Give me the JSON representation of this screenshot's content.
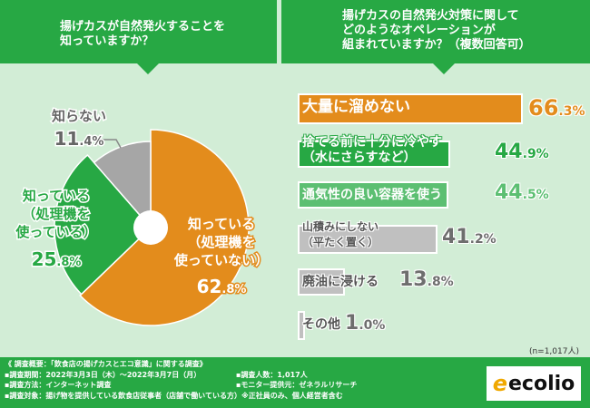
{
  "left_header": {
    "line1": "揚げカスが自然発火することを",
    "line2": "知っていますか？"
  },
  "right_header": {
    "line1": "揚げカスの自然発火対策に関して",
    "line2": "どのようなオペレーションが",
    "line3": "組まれていますか？（複数回答可）"
  },
  "chart_data": [
    {
      "type": "pie",
      "title": "揚げカスが自然発火することを知っていますか？",
      "slices": [
        {
          "label_lines": [
            "知っている",
            "（処理機を",
            "使っていない）"
          ],
          "value": 62.8,
          "value_int": "62",
          "value_dec": ".8%",
          "color": "#e38c1c"
        },
        {
          "label_lines": [
            "知っている",
            "（処理機を",
            "使っている）"
          ],
          "value": 25.8,
          "value_int": "25",
          "value_dec": ".8%",
          "color": "#27a844"
        },
        {
          "label_lines": [
            "知らない"
          ],
          "value": 11.4,
          "value_int": "11",
          "value_dec": ".4%",
          "color": "#a6a6a6"
        }
      ]
    },
    {
      "type": "bar",
      "orientation": "horizontal",
      "title": "揚げカスの自然発火対策に関してどのようなオペレーションが組まれていますか？（複数回答可）",
      "xlim": [
        0,
        100
      ],
      "bars": [
        {
          "label_lines": [
            "大量に溜めない"
          ],
          "value": 66.3,
          "value_int": "66",
          "value_dec": ".3%",
          "color": "#e38c1c",
          "text_color": "#e38c1c"
        },
        {
          "label_lines": [
            "捨てる前に十分に冷やす",
            "（水にさらすなど）"
          ],
          "value": 44.9,
          "value_int": "44",
          "value_dec": ".9%",
          "color": "#27a844",
          "text_color": "#27a844"
        },
        {
          "label_lines": [
            "通気性の良い容器を使う"
          ],
          "value": 44.5,
          "value_int": "44",
          "value_dec": ".5%",
          "color": "#5cbf72",
          "text_color": "#5cbf72"
        },
        {
          "label_lines": [
            "山積みにしない",
            "（平たく置く）"
          ],
          "value": 41.2,
          "value_int": "41",
          "value_dec": ".2%",
          "color": "#c0c0c0",
          "text_color": "#6e6e6e"
        },
        {
          "label_lines": [
            "廃油に浸ける"
          ],
          "value": 13.8,
          "value_int": "13",
          "value_dec": ".8%",
          "color": "#c0c0c0",
          "text_color": "#6e6e6e"
        },
        {
          "label_lines": [
            "その他"
          ],
          "value": 1.0,
          "value_int": "1",
          "value_dec": ".0%",
          "color": "#c0c0c0",
          "text_color": "#6e6e6e"
        }
      ]
    }
  ],
  "sample_note": "(n=1,017人)",
  "footer": {
    "overview": "《 調査概要：「飲食店の揚げカスとエコ意識」に関する調査》",
    "period": "▪調査期間：2022年3月3日（木）～2022年3月7日（月）",
    "count": "▪調査人数：1,017人",
    "method": "▪調査方法：インターネット調査",
    "provider": "▪モニター提供元：ゼネラルリサーチ",
    "target": "▪調査対象：揚げ物を提供している飲食店従事者（店舗で働いている方）※正社員のみ、個人経営者含む"
  },
  "logo": {
    "mark": "e",
    "text": "ecolio"
  }
}
